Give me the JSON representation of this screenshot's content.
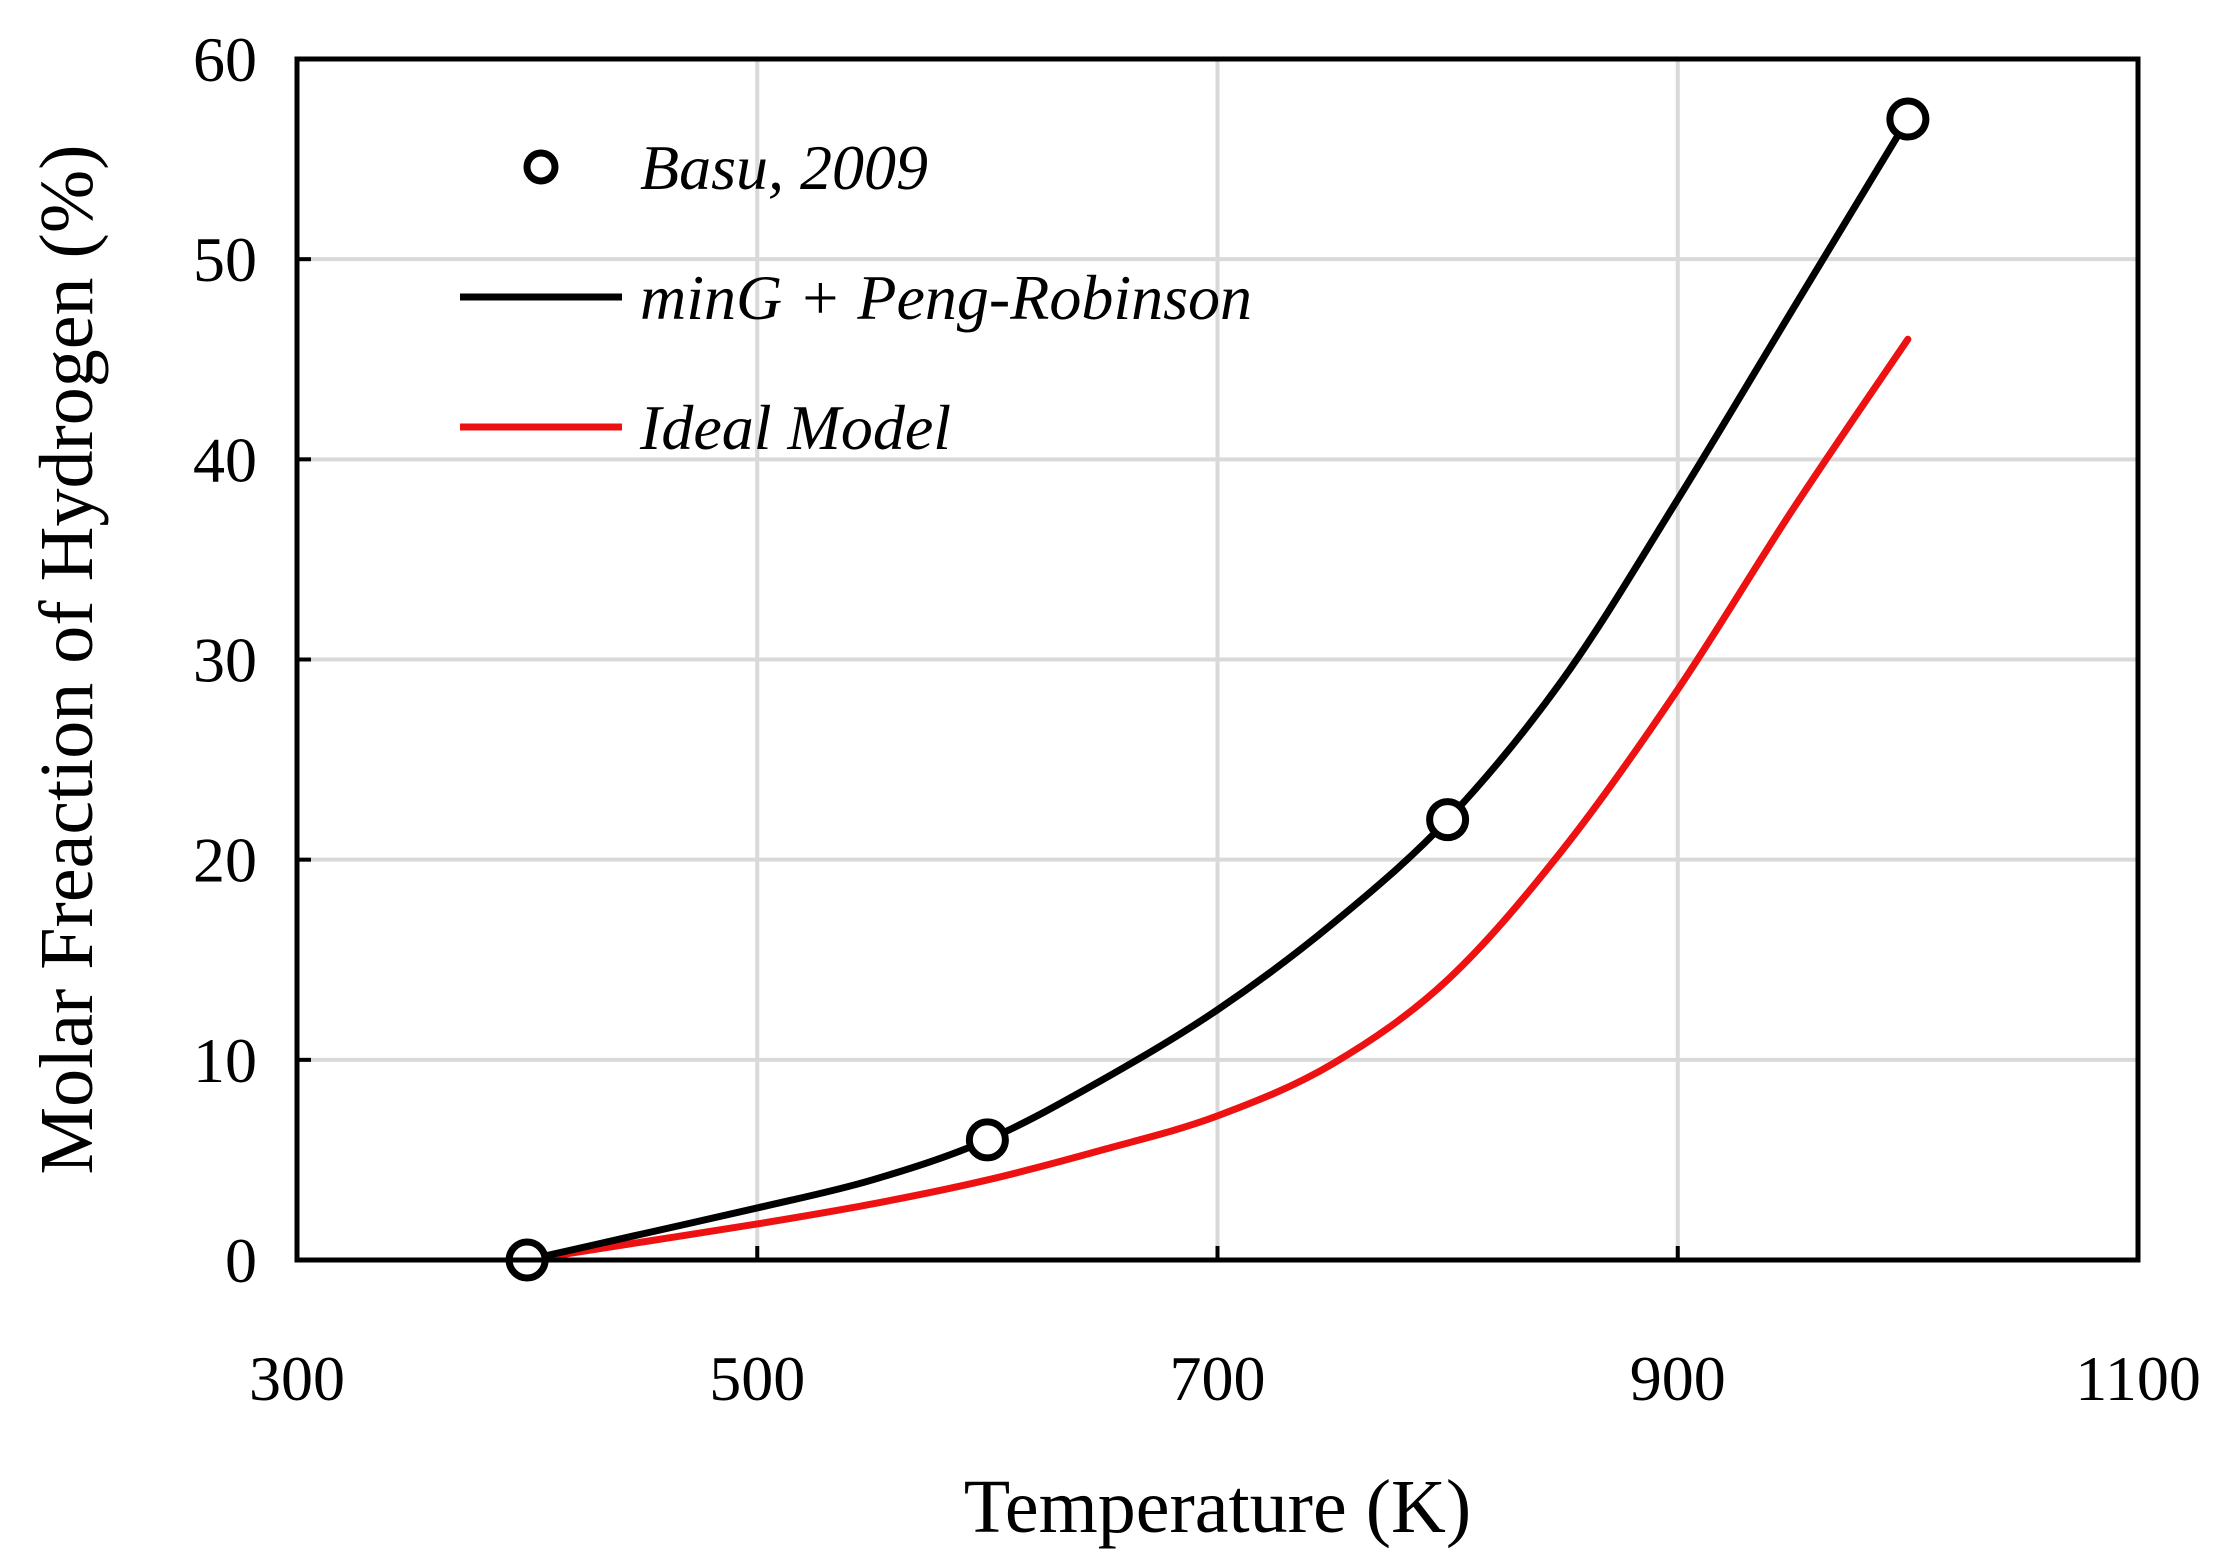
{
  "chart_data": {
    "type": "line",
    "xlabel": "Temperature (K)",
    "ylabel": "Molar Freaction of Hydrogen (%)",
    "xlim": [
      300,
      1100
    ],
    "ylim": [
      0,
      60
    ],
    "x_ticks": [
      300,
      500,
      700,
      900,
      1100
    ],
    "y_ticks": [
      0,
      10,
      20,
      30,
      40,
      50,
      60
    ],
    "x_tick_labels": [
      "300",
      "500",
      "700",
      "900",
      "1100"
    ],
    "y_tick_labels": [
      "0",
      "10",
      "20",
      "30",
      "40",
      "50",
      "60"
    ],
    "grid": true,
    "legend_position": "top-left",
    "series": [
      {
        "name": "Basu, 2009",
        "kind": "scatter",
        "marker": "open-circle",
        "color": "#000000",
        "x": [
          400,
          600,
          800,
          1000
        ],
        "y": [
          0,
          6,
          22,
          57
        ]
      },
      {
        "name": "minG + Peng-Robinson",
        "kind": "line",
        "color": "#000000",
        "x": [
          400,
          450,
          500,
          550,
          600,
          650,
          700,
          750,
          800,
          850,
          900,
          950,
          1000
        ],
        "y": [
          0,
          1.3,
          2.6,
          4.0,
          6.0,
          9.0,
          12.5,
          16.8,
          22.0,
          29.0,
          38.0,
          47.5,
          57.0
        ]
      },
      {
        "name": "Ideal Model",
        "kind": "line",
        "color": "#ee1111",
        "x": [
          400,
          450,
          500,
          550,
          600,
          650,
          700,
          750,
          800,
          850,
          900,
          950,
          1000
        ],
        "y": [
          0,
          0.9,
          1.8,
          2.8,
          4.0,
          5.5,
          7.2,
          9.8,
          14.0,
          20.5,
          28.5,
          37.5,
          46.0
        ]
      }
    ]
  }
}
